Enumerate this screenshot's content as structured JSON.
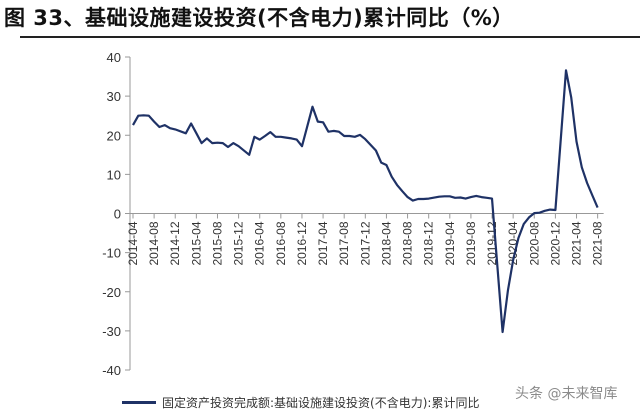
{
  "chart_data": {
    "type": "line",
    "title": "图 33、基础设施建设投资(不含电力)累计同比（%）",
    "xlabel": "",
    "ylabel": "",
    "ylim": [
      -40,
      40
    ],
    "yticks": [
      40,
      30,
      20,
      10,
      0,
      -10,
      -20,
      -30,
      -40
    ],
    "grid": false,
    "legend_placement": "bottom",
    "line_color": "#1f3266",
    "xtick_labels": [
      "2014-04",
      "2014-08",
      "2014-12",
      "2015-04",
      "2015-08",
      "2015-12",
      "2016-04",
      "2016-08",
      "2016-12",
      "2017-04",
      "2017-08",
      "2017-12",
      "2018-04",
      "2018-08",
      "2018-12",
      "2019-04",
      "2019-08",
      "2019-12",
      "2020-04",
      "2020-08",
      "2020-12",
      "2021-04",
      "2021-08"
    ],
    "series": [
      {
        "name": "固定资产投资完成额:基础设施建设投资(不含电力):累计同比",
        "start": "2014-04",
        "values": [
          22.6,
          25.0,
          25.1,
          25.0,
          23.5,
          22.1,
          22.6,
          21.8,
          21.5,
          null,
          20.5,
          23.0,
          20.5,
          18.0,
          19.2,
          18.0,
          18.1,
          18.0,
          17.0,
          18.0,
          17.2,
          null,
          15.0,
          19.6,
          18.9,
          19.8,
          20.8,
          19.6,
          19.6,
          19.4,
          19.2,
          18.9,
          17.2,
          null,
          27.3,
          23.5,
          23.3,
          20.9,
          21.1,
          20.9,
          19.8,
          19.8,
          19.6,
          20.1,
          19.0,
          null,
          16.1,
          13.0,
          12.4,
          9.4,
          7.3,
          5.7,
          4.2,
          3.3,
          3.7,
          3.7,
          3.8,
          null,
          4.3,
          4.4,
          4.4,
          4.0,
          4.1,
          3.8,
          4.2,
          4.5,
          4.2,
          4.0,
          3.8,
          null,
          -30.3,
          -19.7,
          -11.8,
          -6.3,
          -2.7,
          -1.0,
          0.1,
          0.2,
          0.7,
          1.0,
          0.9,
          null,
          36.6,
          29.7,
          18.4,
          11.8,
          7.8,
          4.6,
          1.5
        ]
      }
    ]
  },
  "watermark": "头条 @未来智库"
}
